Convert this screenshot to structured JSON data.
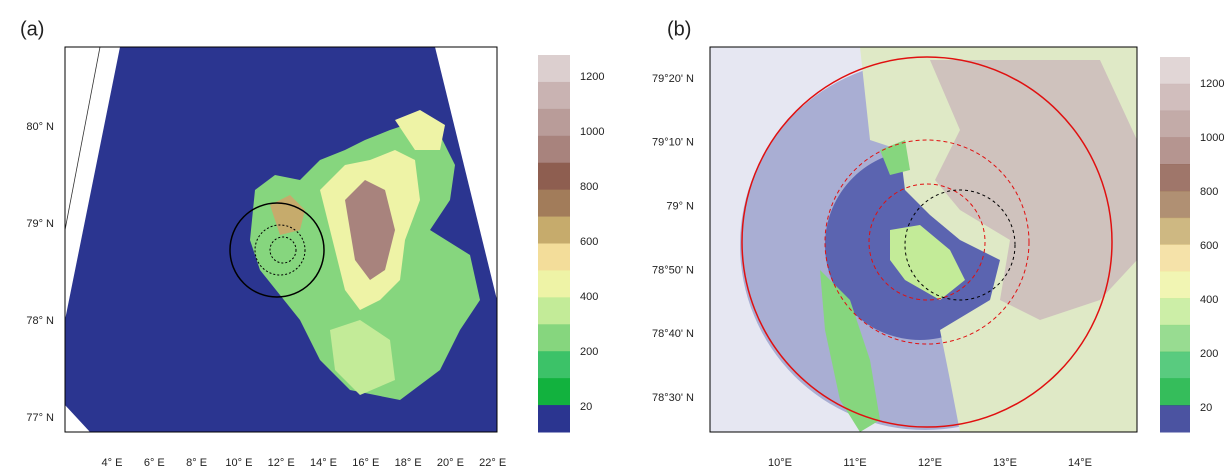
{
  "panels": [
    {
      "label": "(a)",
      "y_ticks": [
        "80° N",
        "79° N",
        "78° N",
        "77° N"
      ],
      "x_ticks": [
        "4° E",
        "6° E",
        "8° E",
        "10° E",
        "12° E",
        "14° E",
        "16° E",
        "18° E",
        "20° E",
        "22° E"
      ],
      "colorbar_ticks": [
        1200,
        1000,
        800,
        600,
        400,
        200,
        20
      ]
    },
    {
      "label": "(b)",
      "y_ticks": [
        "79°20' N",
        "79°10' N",
        "79° N",
        "78°50' N",
        "78°40' N",
        "78°30' N"
      ],
      "x_ticks": [
        "10°E",
        "11°E",
        "12°E",
        "13°E",
        "14°E"
      ],
      "colorbar_ticks": [
        1200,
        1000,
        800,
        600,
        400,
        200,
        20
      ]
    }
  ],
  "colorbar_colors": [
    "#dccfcf",
    "#c9b3b2",
    "#b99c99",
    "#a8837d",
    "#8e5e50",
    "#a27c5a",
    "#c6ab6c",
    "#f3dd9a",
    "#eef3a6",
    "#c3eb98",
    "#86d67e",
    "#3cc268",
    "#12b23e",
    "#2b3590"
  ]
}
